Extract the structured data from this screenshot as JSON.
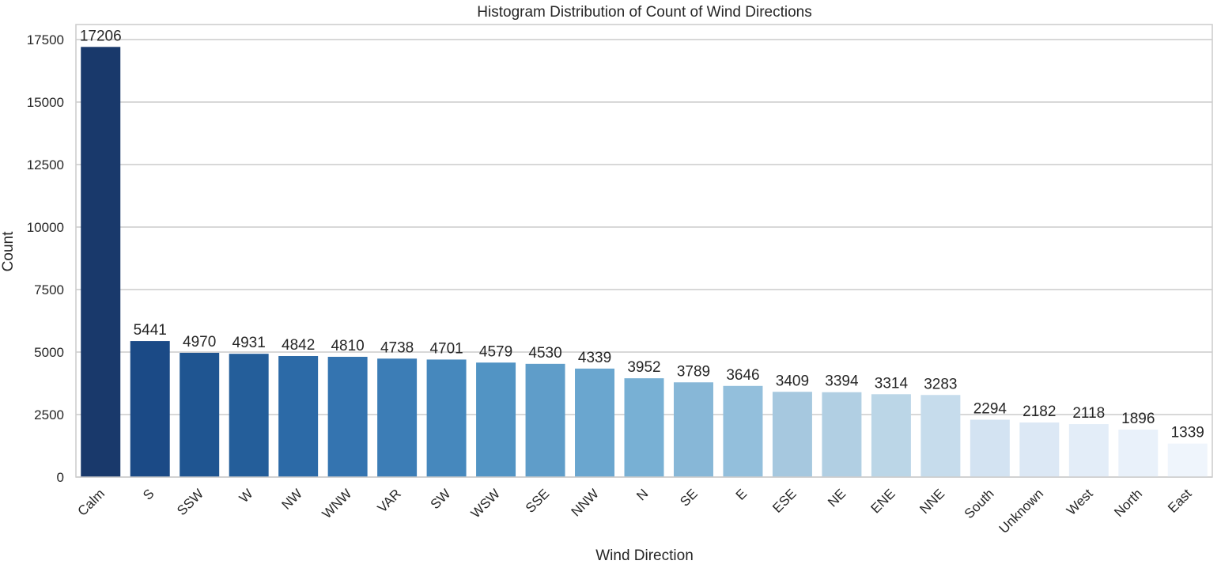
{
  "chart_data": {
    "type": "bar",
    "title": "Histogram Distribution of Count of Wind Directions",
    "xlabel": "Wind Direction",
    "ylabel": "Count",
    "ylim": [
      0,
      17500
    ],
    "yticks": [
      0,
      2500,
      5000,
      7500,
      10000,
      12500,
      15000,
      17500
    ],
    "grid": "horizontal",
    "categories": [
      "Calm",
      "S",
      "SSW",
      "W",
      "NW",
      "WNW",
      "VAR",
      "SW",
      "WSW",
      "SSE",
      "NNW",
      "N",
      "SE",
      "E",
      "ESE",
      "NE",
      "ENE",
      "NNE",
      "South",
      "Unknown",
      "West",
      "North",
      "East"
    ],
    "values": [
      17206,
      5441,
      4970,
      4931,
      4842,
      4810,
      4738,
      4701,
      4579,
      4530,
      4339,
      3952,
      3789,
      3646,
      3409,
      3394,
      3314,
      3283,
      2294,
      2182,
      2118,
      1896,
      1339
    ],
    "colors": [
      "#19396b",
      "#1b4a86",
      "#1f5591",
      "#245e9a",
      "#2c6aa7",
      "#3474b0",
      "#3c7db6",
      "#4688bd",
      "#5294c4",
      "#5f9dc9",
      "#6aa6cf",
      "#78b0d4",
      "#87b7d7",
      "#93bfdc",
      "#a6c8df",
      "#b1cfe3",
      "#bbd6e7",
      "#c6dcec",
      "#d3e3f2",
      "#dce8f5",
      "#e3edf8",
      "#e9f1fa",
      "#eff5fc"
    ],
    "grid_color": "#cccccc",
    "frame_color": "#cccccc"
  }
}
